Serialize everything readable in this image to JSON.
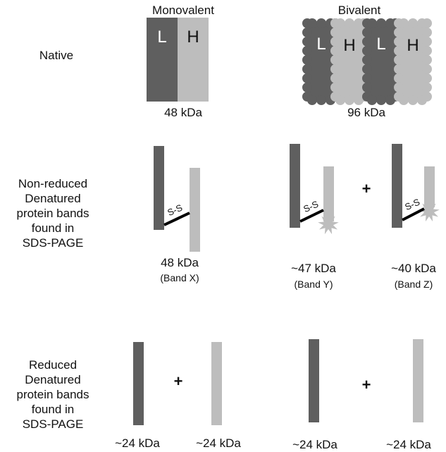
{
  "columns": {
    "monovalent": "Monovalent",
    "bivalent": "Bivalent"
  },
  "rows": {
    "native": [
      "Native"
    ],
    "non_reduced": [
      "Non-reduced",
      "Denatured",
      "protein bands",
      "found in",
      "SDS-PAGE"
    ],
    "reduced": [
      "Reduced",
      "Denatured",
      "protein bands",
      "found in",
      "SDS-PAGE"
    ]
  },
  "chain_labels": {
    "light": "L",
    "heavy": "H"
  },
  "bond_label": "S-S",
  "plus_sign": "+",
  "native": {
    "monovalent_mw": "48 kDa",
    "bivalent_mw": "96 kDa"
  },
  "non_reduced": {
    "band_x": {
      "mw": "48 kDa",
      "label": "(Band X)"
    },
    "band_y": {
      "mw": "~47 kDa",
      "label": "(Band Y)"
    },
    "band_z": {
      "mw": "~40 kDa",
      "label": "(Band Z)"
    }
  },
  "reduced": {
    "mono_light_mw": "~24 kDa",
    "mono_heavy_mw": "~24 kDa",
    "biv_light_mw": "~24 kDa",
    "biv_heavy_mw": "~24 kDa"
  },
  "colors": {
    "light_chain": "#5f5f5f",
    "heavy_chain": "#bdbdbd",
    "bond": "#000000"
  }
}
